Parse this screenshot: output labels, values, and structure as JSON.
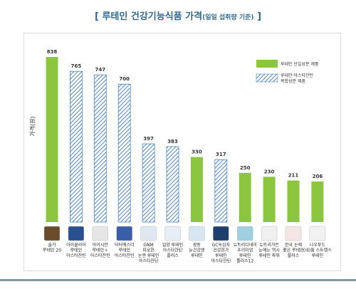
{
  "title": {
    "main": "[ 루테인 건강기능식품 가격",
    "sub": "(일일 섭취량 기준)",
    "end": " ]"
  },
  "chart_data": {
    "type": "bar",
    "ylabel": "가격(원)",
    "ylim": [
      0,
      900
    ],
    "grid": false,
    "legend_position": "top-right",
    "legend": [
      {
        "label": "루테인 단일성분 제품",
        "style": "solid",
        "color": "#8cc63f"
      },
      {
        "label": "루테인·아스타잔틴\n복합성분 제품",
        "style": "hatched",
        "color": "#4a86c5"
      }
    ],
    "categories": [
      "솔가\n루테인 20",
      "아이클리어\n루테인\n아스타잔틴",
      "아이시안\n루테인＋\n아스타잔틴",
      "닥터에스더\n루테인\n아스타잔틴",
      "GNM\n피로한\n눈엔 루테인\n아스타잔틴",
      "일양 루테인\n아스타잔틴\n플러스",
      "광동\n눈건강엔\n루테인",
      "GC녹십자\n건강한가\n루테인\n아스타잔틴",
      "뉴트리디데이\n프리미엄\n루테인\n플러스12",
      "뉴트리가든\n눈에는 역시\n루테인 파워",
      "한국 눈에\n좋은 루테인\n플러스",
      "나우푸드\n(네)울 스트렝스\n루테인"
    ],
    "values": [
      838,
      765,
      747,
      700,
      397,
      383,
      330,
      317,
      250,
      230,
      211,
      206
    ],
    "types": [
      "solid",
      "hatched",
      "hatched",
      "hatched",
      "hatched",
      "hatched",
      "solid",
      "hatched",
      "solid",
      "solid",
      "solid",
      "solid"
    ]
  }
}
